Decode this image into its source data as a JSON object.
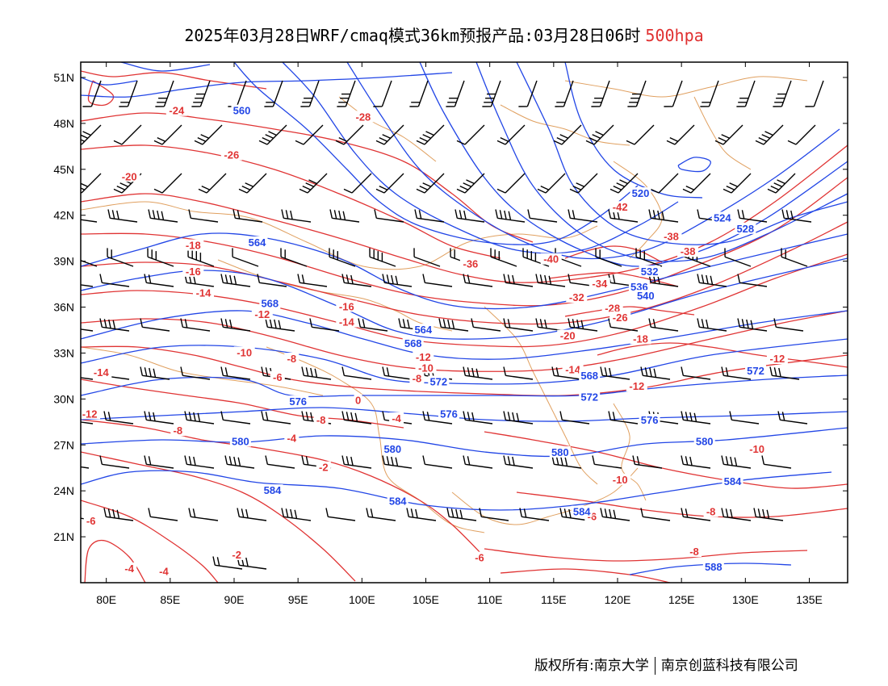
{
  "title": {
    "text": "2025年03月28日WRF/cmaq模式36km预报产品:03月28日06时",
    "level": "500hpa",
    "level_color": "#e03030"
  },
  "footer": {
    "left": "版权所有:南京大学",
    "right": "南京创蓝科技有限公司"
  },
  "colors": {
    "height_contour": "#2246e6",
    "temperature_contour": "#e03434",
    "boundaries": "#e0a060",
    "wind_barbs": "#000000"
  },
  "map": {
    "lon_range": [
      78,
      138
    ],
    "lat_range": [
      18,
      52
    ],
    "lon_ticks": [
      "80E",
      "85E",
      "90E",
      "95E",
      "100E",
      "105E",
      "110E",
      "115E",
      "120E",
      "125E",
      "130E",
      "135E"
    ],
    "lat_ticks": [
      "21N",
      "24N",
      "27N",
      "30N",
      "33N",
      "36N",
      "39N",
      "42N",
      "45N",
      "48N",
      "51N"
    ],
    "height_labels": [
      {
        "text": "560",
        "lon": 90.6,
        "lat": 48.8
      },
      {
        "text": "520",
        "lon": 121.8,
        "lat": 43.4
      },
      {
        "text": "524",
        "lon": 128.2,
        "lat": 41.8
      },
      {
        "text": "528",
        "lon": 130.0,
        "lat": 41.1
      },
      {
        "text": "532",
        "lon": 122.5,
        "lat": 38.3
      },
      {
        "text": "536",
        "lon": 121.7,
        "lat": 37.3
      },
      {
        "text": "540",
        "lon": 122.2,
        "lat": 36.7
      },
      {
        "text": "564",
        "lon": 91.8,
        "lat": 40.2
      },
      {
        "text": "568",
        "lon": 92.8,
        "lat": 36.2
      },
      {
        "text": "564",
        "lon": 104.8,
        "lat": 34.5
      },
      {
        "text": "568",
        "lon": 104.0,
        "lat": 33.6
      },
      {
        "text": "572",
        "lon": 106.0,
        "lat": 31.1
      },
      {
        "text": "576",
        "lon": 95.0,
        "lat": 29.8
      },
      {
        "text": "576",
        "lon": 106.8,
        "lat": 29.0
      },
      {
        "text": "580",
        "lon": 90.5,
        "lat": 27.2
      },
      {
        "text": "580",
        "lon": 102.4,
        "lat": 26.7
      },
      {
        "text": "580",
        "lon": 115.5,
        "lat": 26.5
      },
      {
        "text": "568",
        "lon": 117.8,
        "lat": 31.5
      },
      {
        "text": "572",
        "lon": 117.8,
        "lat": 30.1
      },
      {
        "text": "576",
        "lon": 122.5,
        "lat": 28.6
      },
      {
        "text": "572",
        "lon": 130.8,
        "lat": 31.8
      },
      {
        "text": "580",
        "lon": 126.8,
        "lat": 27.2
      },
      {
        "text": "584",
        "lon": 93.0,
        "lat": 24.0
      },
      {
        "text": "584",
        "lon": 102.8,
        "lat": 23.3
      },
      {
        "text": "584",
        "lon": 117.2,
        "lat": 22.6
      },
      {
        "text": "584",
        "lon": 129.0,
        "lat": 24.6
      },
      {
        "text": "588",
        "lon": 127.5,
        "lat": 19.0
      }
    ],
    "temperature_labels": [
      {
        "text": "-24",
        "lon": 85.5,
        "lat": 48.8
      },
      {
        "text": "-28",
        "lon": 100.1,
        "lat": 48.4
      },
      {
        "text": "-26",
        "lon": 89.8,
        "lat": 45.9
      },
      {
        "text": "-20",
        "lon": 81.8,
        "lat": 44.5
      },
      {
        "text": "-18",
        "lon": 86.8,
        "lat": 40.0
      },
      {
        "text": "-16",
        "lon": 86.8,
        "lat": 38.3
      },
      {
        "text": "-14",
        "lon": 87.6,
        "lat": 36.9
      },
      {
        "text": "-12",
        "lon": 92.2,
        "lat": 35.5
      },
      {
        "text": "-16",
        "lon": 98.8,
        "lat": 36.0
      },
      {
        "text": "-14",
        "lon": 98.8,
        "lat": 35.0
      },
      {
        "text": "-10",
        "lon": 90.8,
        "lat": 33.0
      },
      {
        "text": "-8",
        "lon": 94.5,
        "lat": 32.6
      },
      {
        "text": "-6",
        "lon": 93.4,
        "lat": 31.4
      },
      {
        "text": "0",
        "lon": 99.7,
        "lat": 29.9
      },
      {
        "text": "-12",
        "lon": 104.8,
        "lat": 32.7
      },
      {
        "text": "-10",
        "lon": 105.0,
        "lat": 32.0
      },
      {
        "text": "-8",
        "lon": 104.3,
        "lat": 31.3
      },
      {
        "text": "-8",
        "lon": 96.8,
        "lat": 28.6
      },
      {
        "text": "-4",
        "lon": 102.7,
        "lat": 28.7
      },
      {
        "text": "-14",
        "lon": 79.6,
        "lat": 31.7
      },
      {
        "text": "-12",
        "lon": 78.7,
        "lat": 29.0
      },
      {
        "text": "-8",
        "lon": 85.6,
        "lat": 27.9
      },
      {
        "text": "-4",
        "lon": 94.5,
        "lat": 27.4
      },
      {
        "text": "-2",
        "lon": 97.0,
        "lat": 25.5
      },
      {
        "text": "-6",
        "lon": 78.8,
        "lat": 22.0
      },
      {
        "text": "-2",
        "lon": 90.2,
        "lat": 19.8
      },
      {
        "text": "-4",
        "lon": 81.8,
        "lat": 18.9
      },
      {
        "text": "-4",
        "lon": 84.5,
        "lat": 18.7
      },
      {
        "text": "-36",
        "lon": 108.5,
        "lat": 38.8
      },
      {
        "text": "-40",
        "lon": 114.8,
        "lat": 39.1
      },
      {
        "text": "-42",
        "lon": 120.2,
        "lat": 42.5
      },
      {
        "text": "-38",
        "lon": 124.2,
        "lat": 40.6
      },
      {
        "text": "-38",
        "lon": 125.5,
        "lat": 39.6
      },
      {
        "text": "-34",
        "lon": 118.6,
        "lat": 37.5
      },
      {
        "text": "-32",
        "lon": 116.8,
        "lat": 36.6
      },
      {
        "text": "-28",
        "lon": 119.6,
        "lat": 35.9
      },
      {
        "text": "-26",
        "lon": 120.2,
        "lat": 35.3
      },
      {
        "text": "-20",
        "lon": 116.1,
        "lat": 34.1
      },
      {
        "text": "-18",
        "lon": 121.8,
        "lat": 33.9
      },
      {
        "text": "-14",
        "lon": 116.5,
        "lat": 31.9
      },
      {
        "text": "-12",
        "lon": 121.5,
        "lat": 30.8
      },
      {
        "text": "-12",
        "lon": 132.5,
        "lat": 32.6
      },
      {
        "text": "-10",
        "lon": 130.9,
        "lat": 26.7
      },
      {
        "text": "-10",
        "lon": 120.2,
        "lat": 24.7
      },
      {
        "text": "-8",
        "lon": 127.3,
        "lat": 22.6
      },
      {
        "text": "-6",
        "lon": 118.0,
        "lat": 22.3
      },
      {
        "text": "-8",
        "lon": 126.0,
        "lat": 20.0
      },
      {
        "text": "-6",
        "lon": 109.2,
        "lat": 19.6
      }
    ]
  }
}
